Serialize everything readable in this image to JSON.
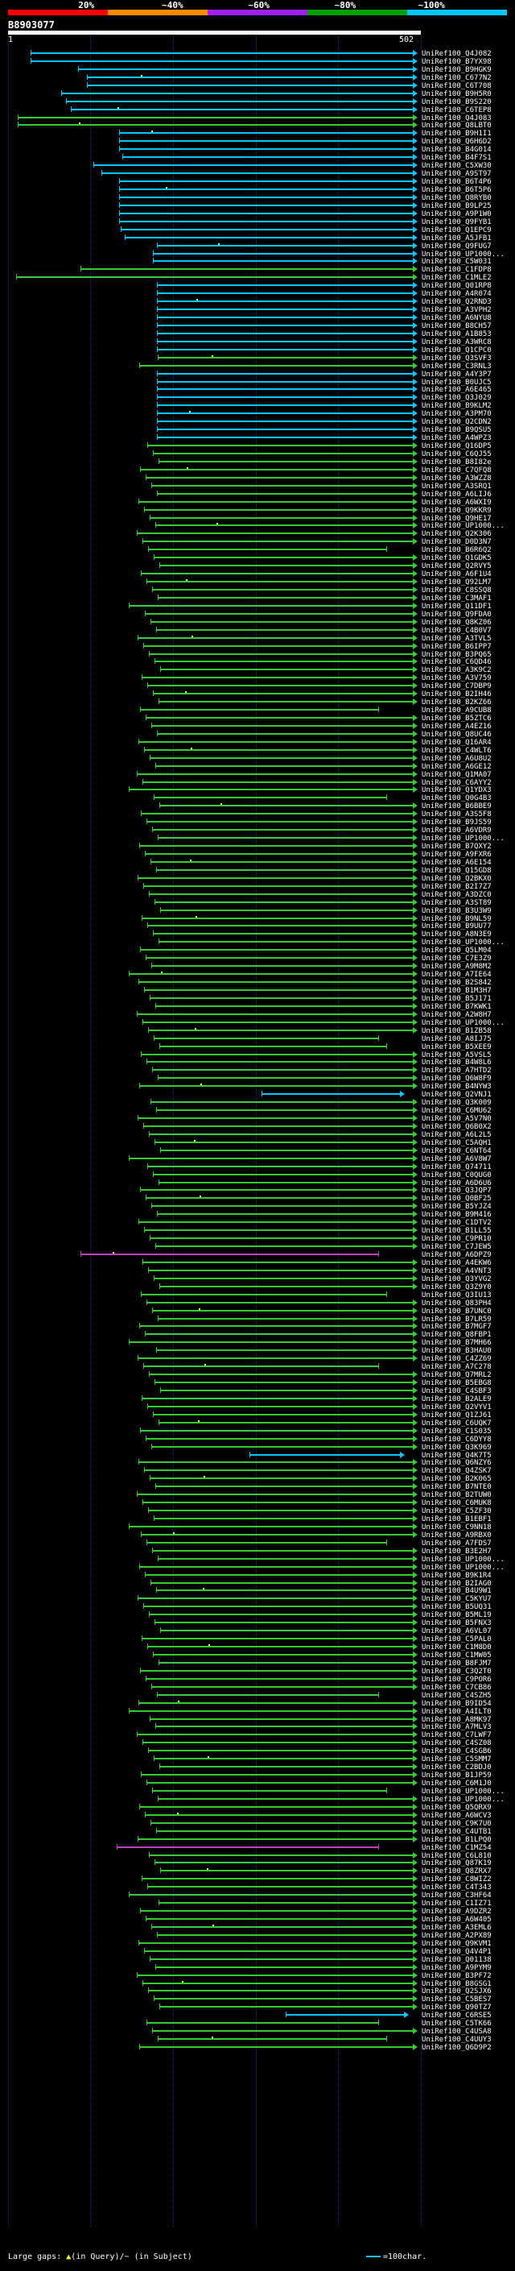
{
  "scale": {
    "labels": [
      "20%",
      "~40%",
      "~60%",
      "~80%",
      "~100%"
    ],
    "colors": [
      "#ff0000",
      "#ff8c00",
      "#a020f0",
      "#00a000",
      "#00c8ff"
    ]
  },
  "query": {
    "title": "B8903077",
    "start": "1",
    "end": "502"
  },
  "hit_colors": {
    "cyan": "#00c8ff",
    "green": "#33cc33",
    "magenta": "#c040c0"
  },
  "hits": [
    "UniRef100_Q4J082",
    "UniRef100_B7YX98",
    "UniRef100_B9HGK9",
    "UniRef100_C677N2",
    "UniRef100_C6T708",
    "UniRef100_B9H5R0",
    "UniRef100_B9S220",
    "UniRef100_C6TEP8",
    "UniRef100_Q4J083",
    "UniRef100_Q8LBT0",
    "UniRef100_B9H1I1",
    "UniRef100_Q6H6D2",
    "UniRef100_B4G014",
    "UniRef100_B4F7S1",
    "UniRef100_C5XW30",
    "UniRef100_A9ST97",
    "UniRef100_B6T4P6",
    "UniRef100_B6T5P6",
    "UniRef100_Q8RYB0",
    "UniRef100_B9LP25",
    "UniRef100_A9P1W0",
    "UniRef100_Q9FYB1",
    "UniRef100_Q1EPC9",
    "UniRef100_A5JFB1",
    "UniRef100_Q9FUG7",
    "UniRef100_UP1000...",
    "UniRef100_C5W031",
    "UniRef100_C1FDP8",
    "UniRef100_C1MLE2",
    "UniRef100_Q01RP8",
    "UniRef100_A4R074",
    "UniRef100_Q2RND3",
    "UniRef100_A3VPH2",
    "UniRef100_A6NYU8",
    "UniRef100_B8CH57",
    "UniRef100_A1B853",
    "UniRef100_A3WRC8",
    "UniRef100_Q1CPC0",
    "UniRef100_Q3SVF3",
    "UniRef100_C3RNL3",
    "UniRef100_A4Y3P7",
    "UniRef100_B0UJC5",
    "UniRef100_A6E465",
    "UniRef100_Q3J029",
    "UniRef100_B9KLM2",
    "UniRef100_A3PM70",
    "UniRef100_Q2CDN2",
    "UniRef100_B9QSU5",
    "UniRef100_A4WPZ3",
    "UniRef100_Q16DP5",
    "UniRef100_C6QJ55",
    "UniRef100_B8I82e",
    "UniRef100_C7QFQ8",
    "UniRef100_A3WZZ8",
    "UniRef100_A3SRQ1",
    "UniRef100_A6LIJ6",
    "UniRef100_A6WXI9",
    "UniRef100_Q9KKR9",
    "UniRef100_Q9HE17",
    "UniRef100_UP1000...",
    "UniRef100_Q2K306",
    "UniRef100_D0D3N7",
    "UniRef100_B6R6Q2",
    "UniRef100_Q1GDK5",
    "UniRef100_Q2RVY5",
    "UniRef100_A6F1U4",
    "UniRef100_Q92LM7",
    "UniRef100_C8SSQ8",
    "UniRef100_C3MAF1",
    "UniRef100_Q11DF1",
    "UniRef100_Q9FDA0",
    "UniRef100_Q8KZ06",
    "UniRef100_C4B0V7",
    "UniRef100_A3TVL5",
    "UniRef100_B6IPP7",
    "UniRef100_B3PQ65",
    "UniRef100_C6QD46",
    "UniRef100_A3K9C2",
    "UniRef100_A3V759",
    "UniRef100_C7DBP9",
    "UniRef100_B2IH46",
    "UniRef100_B2KZ66",
    "UniRef100_A9CUB8",
    "UniRef100_B5ZTC6",
    "UniRef100_A4EZ16",
    "UniRef100_Q8UC46",
    "UniRef100_Q16AR4",
    "UniRef100_C4WLT6",
    "UniRef100_A6U8U2",
    "UniRef100_A6GE12",
    "UniRef100_Q1MA07",
    "UniRef100_C6AYY2",
    "UniRef100_Q1YDX3",
    "UniRef100_Q0G4B3",
    "UniRef100_B6BBE9",
    "UniRef100_A3S5F8",
    "UniRef100_B9JS59",
    "UniRef100_A6VDR9",
    "UniRef100_UP1000...",
    "UniRef100_B7QXY2",
    "UniRef100_A9FXR6",
    "UniRef100_A6E154",
    "UniRef100_Q15GD8",
    "UniRef100_Q2BKX0",
    "UniRef100_B2I7Z7",
    "UniRef100_A3DZC0",
    "UniRef100_A3ST89",
    "UniRef100_B3U3W9",
    "UniRef100_B9NL59",
    "UniRef100_B9UU77",
    "UniRef100_A8N3E9",
    "UniRef100_UP1000...",
    "UniRef100_Q5LM04",
    "UniRef100_C7E3Z9",
    "UniRef100_A9M8M2",
    "UniRef100_A7IE64",
    "UniRef100_B2S842",
    "UniRef100_B1M3H7",
    "UniRef100_B5J171",
    "UniRef100_B7KWK1",
    "UniRef100_A2W8H7",
    "UniRef100_UP1000...",
    "UniRef100_B1ZB58",
    "UniRef100_A8IJ75",
    "UniRef100_B5XEE9",
    "UniRef100_A5VSL5",
    "UniRef100_B4W8L6",
    "UniRef100_A7HTD2",
    "UniRef100_Q6W8F9",
    "UniRef100_B4NYW3",
    "UniRef100_Q2VNJ1",
    "UniRef100_Q3K009",
    "UniRef100_C6MU62",
    "UniRef100_A5V7N0",
    "UniRef100_Q6B0X2",
    "UniRef100_A6L2L5",
    "UniRef100_C5AQH1",
    "UniRef100_C6NT64",
    "UniRef100_A6V8W7",
    "UniRef100_Q74711",
    "UniRef100_C0QUG0",
    "UniRef100_A6D6U6",
    "UniRef100_Q3JQP7",
    "UniRef100_Q0BF25",
    "UniRef100_B5YJZ4",
    "UniRef100_B9M416",
    "UniRef100_C1DTV2",
    "UniRef100_B1LL55",
    "UniRef100_C9PR10",
    "UniRef100_C7JEW5",
    "UniRef100_A6DPZ9",
    "UniRef100_A4EKW6",
    "UniRef100_A4VNT3",
    "UniRef100_Q3YVG2",
    "UniRef100_Q3Z9Y0",
    "UniRef100_Q3IU13",
    "UniRef100_Q83PH4",
    "UniRef100_B7UNC0",
    "UniRef100_B7LR59",
    "UniRef100_B7MGF7",
    "UniRef100_Q8FBP1",
    "UniRef100_B7MH66",
    "UniRef100_B3HAU0",
    "UniRef100_C4ZZ69",
    "UniRef100_A7C278",
    "UniRef100_Q7MRL2",
    "UniRef100_B5EBG8",
    "UniRef100_C4SBF3",
    "UniRef100_B2ALE9",
    "UniRef100_Q2VYV1",
    "UniRef100_Q1ZJ61",
    "UniRef100_C6UQK7",
    "UniRef100_C1S035",
    "UniRef100_C6DYY8",
    "UniRef100_Q3K969",
    "UniRef100_Q4K7T5",
    "UniRef100_Q6NZY6",
    "UniRef100_Q4ZSK7",
    "UniRef100_B2K065",
    "UniRef100_B7NTE0",
    "UniRef100_B2TUW0",
    "UniRef100_C6MUK8",
    "UniRef100_C5ZF30",
    "UniRef100_B1EBF1",
    "UniRef100_C9NN18",
    "UniRef100_A9RBX0",
    "UniRef100_A7FDS7",
    "UniRef100_B3E2H7",
    "UniRef100_UP1000...",
    "UniRef100_UP1000...",
    "UniRef100_B9K1R4",
    "UniRef100_B2IAG0",
    "UniRef100_B4U9W1",
    "UniRef100_C5KYU7",
    "UniRef100_B5UQ31",
    "UniRef100_B5ML19",
    "UniRef100_B5FNX3",
    "UniRef100_A6VL07",
    "UniRef100_C5PAL0",
    "UniRef100_C1M8D0",
    "UniRef100_C1MW05",
    "UniRef100_B8FJM7",
    "UniRef100_C3Q2T0",
    "UniRef100_C9POR6",
    "UniRef100_C7CB86",
    "UniRef100_C4SZH5",
    "UniRef100_B9ID54",
    "UniRef100_A4ILT0",
    "UniRef100_A8MK97",
    "UniRef100_A7MLV3",
    "UniRef100_C7LWF7",
    "UniRef100_C4SZ08",
    "UniRef100_C4SGB6",
    "UniRef100_C5SMM7",
    "UniRef100_C2BDJ0",
    "UniRef100_B1JP59",
    "UniRef100_C6M1J0",
    "UniRef100_UP1000...",
    "UniRef100_UP1000...",
    "UniRef100_Q5QRX9",
    "UniRef100_A6WCV3",
    "UniRef100_C9K7U0",
    "UniRef100_C4UTB1",
    "UniRef100_B1LPQ0",
    "UniRef100_C1MZ54",
    "UniRef100_C6L810",
    "UniRef100_Q87K19",
    "UniRef100_Q8ZRX7",
    "UniRef100_C8WIZ2",
    "UniRef100_C4T343",
    "UniRef100_C3HF64",
    "UniRef100_C1IZ71",
    "UniRef100_A9DZR2",
    "UniRef100_A6W405",
    "UniRef100_A3EML6",
    "UniRef100_A2PX89",
    "UniRef100_Q9KVM1",
    "UniRef100_Q4V4P1",
    "UniRef100_Q01138",
    "UniRef100_A9PYM9",
    "UniRef100_B3PF72",
    "UniRef100_B8GSG1",
    "UniRef100_Q2SJX6",
    "UniRef100_C5BES7",
    "UniRef100_Q90TZ7",
    "UniRef100_C6RSE5",
    "UniRef100_C5TK66",
    "UniRef100_C4USA8",
    "UniRef100_C4UUY3",
    "UniRef100_Q6D9P2"
  ],
  "footer": {
    "large_gaps_label": "Large gaps:",
    "query_gap_text": "(in Query)",
    "subject_gap_text": "/~ (in Subject)",
    "legend_text": "=100char."
  }
}
